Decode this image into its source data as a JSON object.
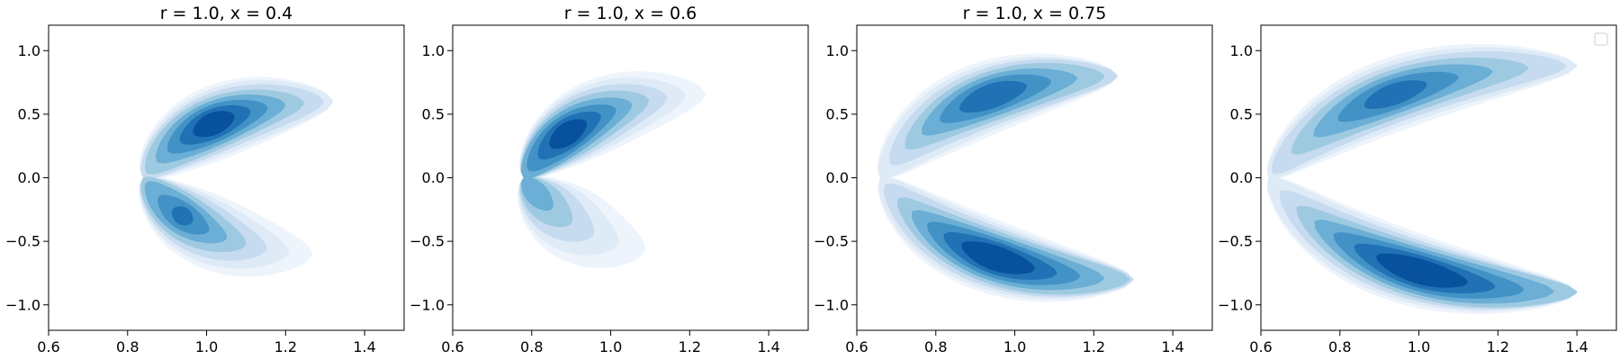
{
  "chart_data": [
    {
      "type": "contour",
      "title": "r = 1.0, x = 0.4",
      "xlim": [
        0.6,
        1.5
      ],
      "ylim": [
        -1.2,
        1.2
      ],
      "xticks": [
        0.6,
        0.8,
        1.0,
        1.2,
        1.4
      ],
      "yticks": [
        -1.0,
        -0.5,
        0.0,
        0.5,
        1.0
      ],
      "xtick_labels": [
        "0.6",
        "0.8",
        "1.0",
        "1.2",
        "1.4"
      ],
      "ytick_labels": [
        "−1.0",
        "−0.5",
        "0.0",
        "0.5",
        "1.0"
      ],
      "grid": false,
      "colormap": "Blues",
      "lobes": [
        {
          "x0": 0.84,
          "y0": 0.0,
          "x1": 1.32,
          "y1": 0.6,
          "peak_x": 1.11,
          "peak_y": 0.36,
          "strength": 0.95
        },
        {
          "x0": 0.84,
          "y0": 0.0,
          "x1": 1.3,
          "y1": -0.6,
          "peak_x": 1.03,
          "peak_y": -0.26,
          "strength": 0.75
        }
      ]
    },
    {
      "type": "contour",
      "title": "r = 1.0, x = 0.6",
      "xlim": [
        0.6,
        1.5
      ],
      "ylim": [
        -1.2,
        1.2
      ],
      "xticks": [
        0.6,
        0.8,
        1.0,
        1.2,
        1.4
      ],
      "yticks": [
        -1.0,
        -0.5,
        0.0,
        0.5,
        1.0
      ],
      "xtick_labels": [
        "0.6",
        "0.8",
        "1.0",
        "1.2",
        "1.4"
      ],
      "ytick_labels": [
        "−1.0",
        "−0.5",
        "0.0",
        "0.5",
        "1.0"
      ],
      "grid": false,
      "colormap": "Blues",
      "lobes": [
        {
          "x0": 0.78,
          "y0": 0.0,
          "x1": 1.26,
          "y1": 0.66,
          "peak_x": 0.93,
          "peak_y": 0.33,
          "strength": 0.95
        },
        {
          "x0": 0.78,
          "y0": 0.0,
          "x1": 1.22,
          "y1": -0.6,
          "peak_x": 0.86,
          "peak_y": -0.12,
          "strength": 0.55
        }
      ]
    },
    {
      "type": "contour",
      "title": "r = 1.0, x = 0.75",
      "xlim": [
        0.6,
        1.5
      ],
      "ylim": [
        -1.2,
        1.2
      ],
      "xticks": [
        0.6,
        0.8,
        1.0,
        1.2,
        1.4
      ],
      "yticks": [
        -1.0,
        -0.5,
        0.0,
        0.5,
        1.0
      ],
      "xtick_labels": [
        "0.6",
        "0.8",
        "1.0",
        "1.2",
        "1.4"
      ],
      "ytick_labels": [
        "−1.0",
        "−0.5",
        "0.0",
        "0.5",
        "1.0"
      ],
      "grid": false,
      "colormap": "Blues",
      "lobes": [
        {
          "x0": 0.66,
          "y0": 0.0,
          "x1": 1.26,
          "y1": 0.8,
          "peak_x": 0.98,
          "peak_y": 0.61,
          "strength": 0.85
        },
        {
          "x0": 0.66,
          "y0": 0.0,
          "x1": 1.3,
          "y1": -0.8,
          "peak_x": 1.0,
          "peak_y": -0.6,
          "strength": 1.0
        }
      ]
    },
    {
      "type": "contour",
      "title": "",
      "xlim": [
        0.6,
        1.5
      ],
      "ylim": [
        -1.2,
        1.2
      ],
      "xticks": [
        0.6,
        0.8,
        1.0,
        1.2,
        1.4
      ],
      "yticks": [
        -1.0,
        -0.5,
        0.0,
        0.5,
        1.0
      ],
      "xtick_labels": [
        "0.6",
        "0.8",
        "1.0",
        "1.2",
        "1.4"
      ],
      "ytick_labels": [
        "−1.0",
        "−0.5",
        "0.0",
        "0.5",
        "1.0"
      ],
      "grid": false,
      "colormap": "Blues",
      "legend": {
        "placement": "upper-right",
        "entries": []
      },
      "lobes": [
        {
          "x0": 0.62,
          "y0": 0.0,
          "x1": 1.4,
          "y1": 0.88,
          "peak_x": 0.98,
          "peak_y": 0.63,
          "strength": 0.8
        },
        {
          "x0": 0.62,
          "y0": 0.0,
          "x1": 1.4,
          "y1": -0.9,
          "peak_x": 0.99,
          "peak_y": -0.75,
          "strength": 1.0
        }
      ]
    }
  ],
  "colors": [
    "#eef4fb",
    "#deebf7",
    "#c6dbef",
    "#9ecae1",
    "#6baed6",
    "#4292c6",
    "#2171b5",
    "#08519c"
  ]
}
